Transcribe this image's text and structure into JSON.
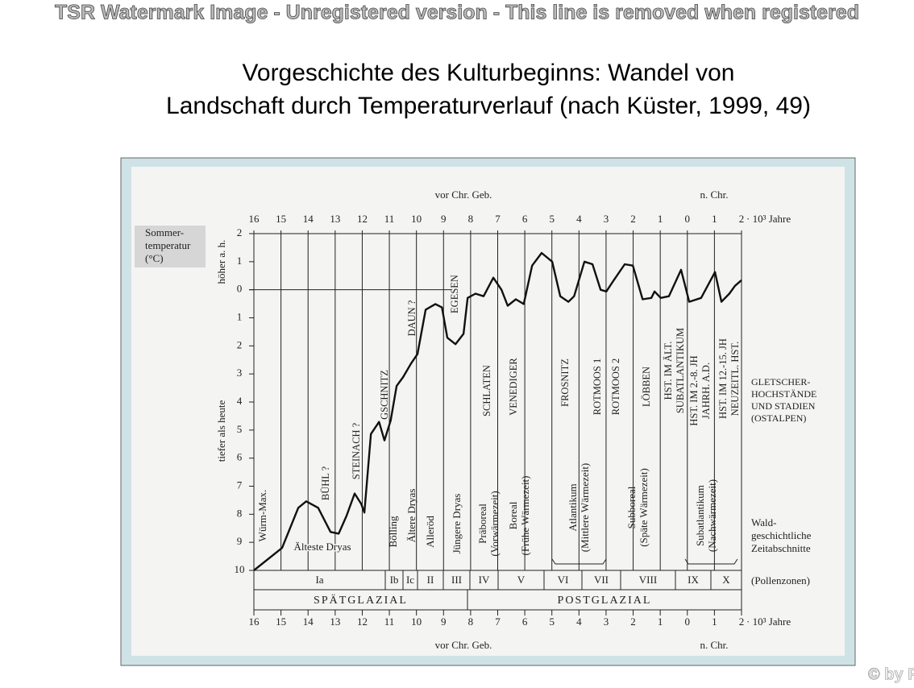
{
  "watermark": "TSR Watermark Image - Unregistered version - This line is removed when registered",
  "title": [
    "Vorgeschichte des Kulturbeginns: Wandel von",
    "Landschaft durch Temperaturverlauf (nach Küster, 1999, 49)"
  ],
  "copyright": "© by PS",
  "chart_data": {
    "type": "line",
    "color": "#111111",
    "x_axis_label_left": "vor Chr. Geb.",
    "x_axis_label_right": "n. Chr.",
    "x_unit": "· 10³ Jahre",
    "y_box_label": [
      "Sommer-",
      "temperatur",
      "(°C)"
    ],
    "y_label_upper": "höher a. h.",
    "y_label_lower": "tiefer als heute",
    "x": [
      -16,
      -14.96,
      -14.36,
      -14.07,
      -13.63,
      -13.17,
      -12.87,
      -12.58,
      -12.28,
      -12.04,
      -11.92,
      -11.68,
      -11.38,
      -11.18,
      -10.95,
      -10.73,
      -10.49,
      -10.2,
      -9.96,
      -9.66,
      -9.3,
      -9.06,
      -8.86,
      -8.56,
      -8.26,
      -8.11,
      -7.82,
      -7.52,
      -7.16,
      -6.86,
      -6.63,
      -6.33,
      -6.04,
      -5.73,
      -5.38,
      -4.99,
      -4.69,
      -4.39,
      -4.18,
      -3.8,
      -3.5,
      -3.2,
      -2.99,
      -2.75,
      -2.31,
      -2.01,
      -1.65,
      -1.33,
      -1.21,
      -0.98,
      -0.68,
      -0.23,
      0.07,
      0.51,
      1.02,
      1.26,
      1.55,
      1.76,
      2.0
    ],
    "values": [
      -10,
      -9.2,
      -7.77,
      -7.54,
      -7.77,
      -8.63,
      -8.69,
      -8.06,
      -7.26,
      -7.63,
      -7.94,
      -5.14,
      -4.71,
      -5.37,
      -4.66,
      -3.43,
      -3.11,
      -2.63,
      -2.29,
      -0.71,
      -0.51,
      -0.63,
      -1.71,
      -1.94,
      -1.57,
      -0.29,
      -0.14,
      -0.23,
      0.43,
      0,
      -0.57,
      -0.34,
      -0.51,
      0.86,
      1.31,
      1.0,
      -0.23,
      -0.43,
      -0.23,
      1.0,
      0.91,
      0,
      -0.06,
      0.29,
      0.91,
      0.86,
      -0.34,
      -0.29,
      -0.06,
      -0.29,
      -0.23,
      0.71,
      -0.43,
      -0.29,
      0.63,
      -0.43,
      -0.14,
      0.14,
      0.34
    ],
    "xlim": [
      -16,
      2
    ],
    "ylim": [
      -10,
      2
    ],
    "xticks": [
      {
        "value": -16,
        "label": "16"
      },
      {
        "value": -15,
        "label": "15"
      },
      {
        "value": -14,
        "label": "14"
      },
      {
        "value": -13,
        "label": "13"
      },
      {
        "value": -12,
        "label": "12"
      },
      {
        "value": -11,
        "label": "11"
      },
      {
        "value": -10,
        "label": "10"
      },
      {
        "value": -9,
        "label": "9"
      },
      {
        "value": -8,
        "label": "8"
      },
      {
        "value": -7,
        "label": "7"
      },
      {
        "value": -6,
        "label": "6"
      },
      {
        "value": -5,
        "label": "5"
      },
      {
        "value": -4,
        "label": "4"
      },
      {
        "value": -3,
        "label": "3"
      },
      {
        "value": -2,
        "label": "2"
      },
      {
        "value": -1,
        "label": "1"
      },
      0,
      1,
      2
    ],
    "yticks": [
      2,
      1,
      0,
      {
        "value": -1,
        "label": "1"
      },
      {
        "value": -2,
        "label": "2"
      },
      {
        "value": -3,
        "label": "3"
      },
      {
        "value": -4,
        "label": "4"
      },
      {
        "value": -5,
        "label": "5"
      },
      {
        "value": -6,
        "label": "6"
      },
      {
        "value": -7,
        "label": "7"
      },
      {
        "value": -8,
        "label": "8"
      },
      {
        "value": -9,
        "label": "9"
      },
      {
        "value": -10,
        "label": "10"
      }
    ],
    "glacier_stages": [
      [
        "BÜHL ?"
      ],
      [
        "STEINACH ?"
      ],
      [
        "GSCHNITZ"
      ],
      [
        "DAUN ?"
      ],
      [
        "EGESEN"
      ],
      [
        "SCHLATEN"
      ],
      [
        "VENEDIGER"
      ],
      [
        "FROSNITZ"
      ],
      [
        "ROTMOOS 1"
      ],
      [
        "ROTMOOS 2"
      ],
      [
        "LÖBBEN"
      ],
      [
        "HST. IM ÄLT.",
        "SUBATLANTIKUM"
      ],
      [
        "HST. IM 2.-8. JH",
        "JAHRH. A.D."
      ],
      [
        "HST. IM 12.-15. JH",
        "NEUZEITL. HST."
      ]
    ],
    "glacier_label": [
      "GLETSCHER-",
      "HOCHSTÄNDE",
      "UND STADIEN",
      "(OSTALPEN)"
    ],
    "forest_periods": [
      [
        "Würm-Max."
      ],
      [
        "Älteste Dryas"
      ],
      [
        "Bölling"
      ],
      [
        "Ältere Dryas"
      ],
      [
        "Alleröd"
      ],
      [
        "Jüngere Dryas"
      ],
      [
        "Präboreal",
        "(Vorwärmezeit)"
      ],
      [
        "Boreal",
        "(Frühe Wärmezeit)"
      ],
      [
        "Atlantikum",
        "(Mittlere Wärmezeit)"
      ],
      [
        "Subboreal",
        "(Späte Wärmezeit)"
      ],
      [
        "Subatlantikum",
        "(Nachwärmezeit)"
      ]
    ],
    "forest_label": [
      "Wald-",
      "geschichtliche",
      "Zeitabschnitte"
    ],
    "pollen_zones": [
      "Ia",
      "Ib",
      "Ic",
      "II",
      "III",
      "IV",
      "V",
      "VI",
      "VII",
      "VIII",
      "IX",
      "X"
    ],
    "pollen_label": "(Pollenzonen)",
    "periods": [
      "SPÄTGLAZIAL",
      "POSTGLAZIAL"
    ]
  }
}
